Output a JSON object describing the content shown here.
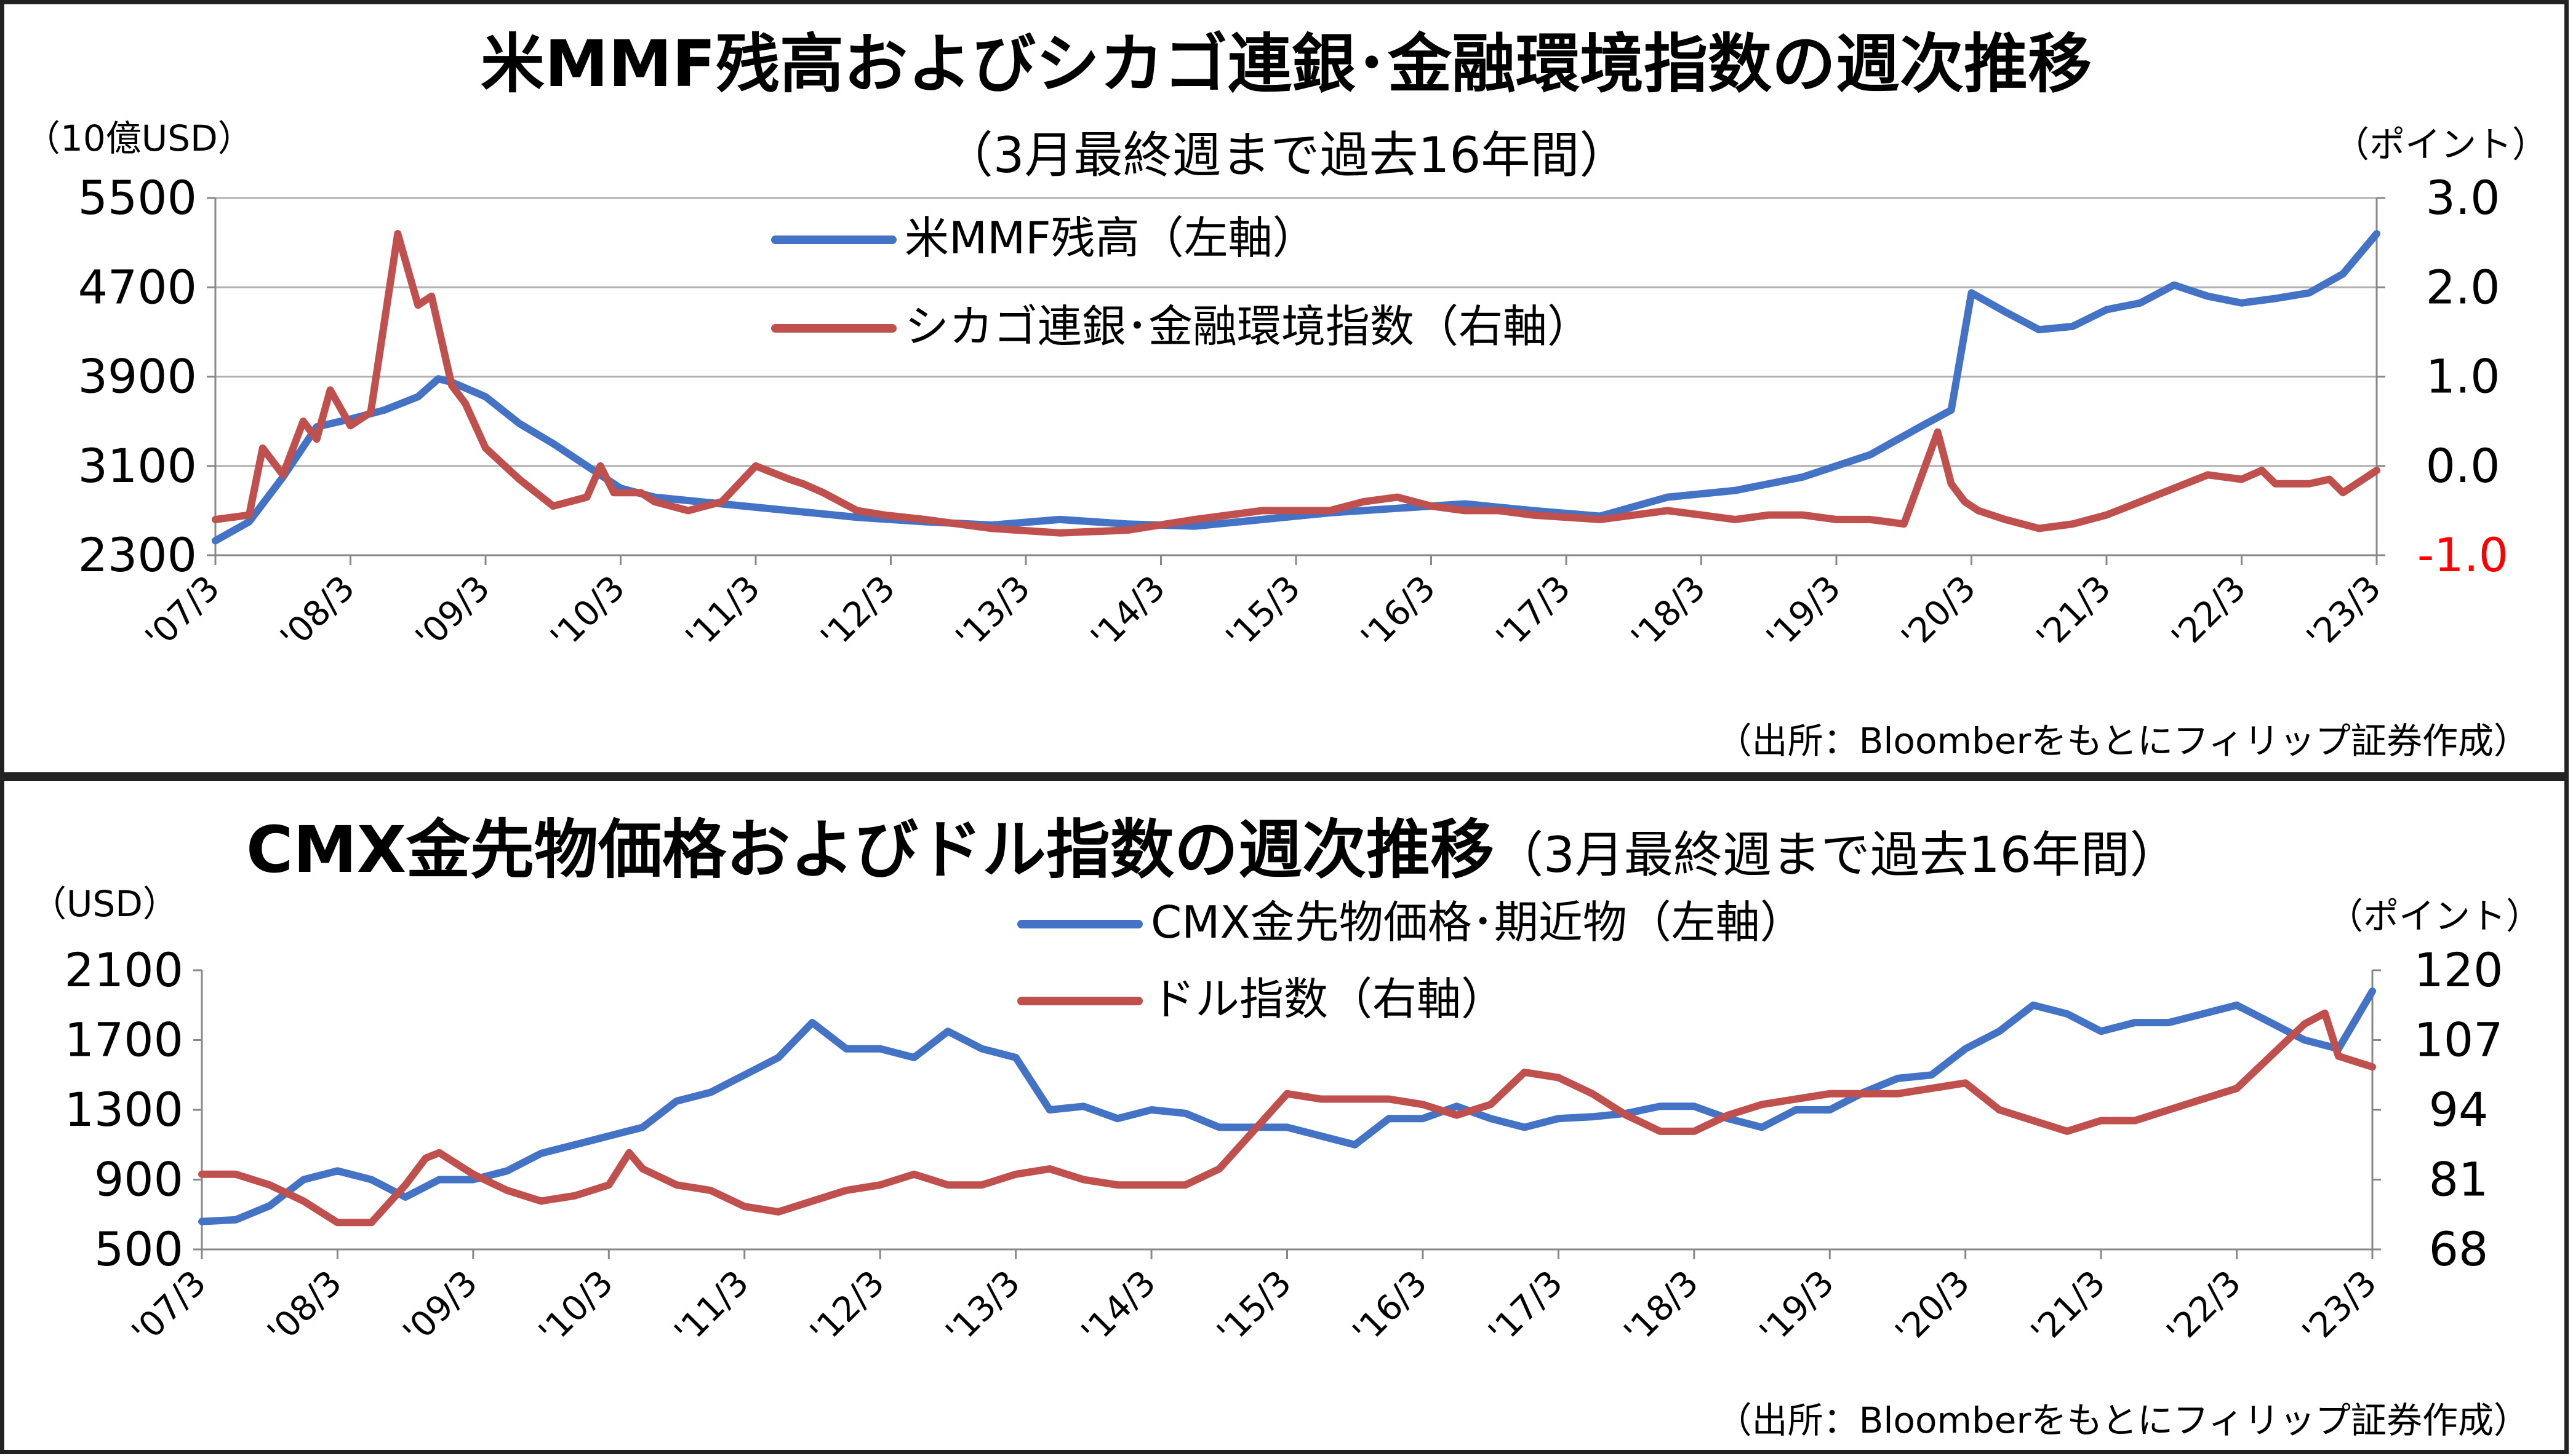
{
  "colors": {
    "blue": "#4472c4",
    "red": "#c0504d",
    "negative_tick": "#ff0000"
  },
  "chart_data": [
    {
      "type": "line",
      "title": "米MMF残高およびシカゴ連銀･金融環境指数の週次推移",
      "subtitle": "（3月最終週まで過去16年間）",
      "left_unit": "（10億USD）",
      "right_unit": "（ポイント）",
      "source": "（出所：Bloomberをもとにフィリップ証券作成）",
      "x_ticks": [
        "'07/3",
        "'08/3",
        "'09/3",
        "'10/3",
        "'11/3",
        "'12/3",
        "'13/3",
        "'14/3",
        "'15/3",
        "'16/3",
        "'17/3",
        "'18/3",
        "'19/3",
        "'20/3",
        "'21/3",
        "'22/3",
        "'23/3"
      ],
      "y_left_ticks": [
        "5500",
        "4700",
        "3900",
        "3100",
        "2300"
      ],
      "y_right_ticks": [
        "3.0",
        "2.0",
        "1.0",
        "0.0",
        "-1.0"
      ],
      "ylim_left": [
        2300,
        5500
      ],
      "ylim_right": [
        -1.0,
        3.0
      ],
      "grid": "horizontal",
      "legend_position": "top-center",
      "series": [
        {
          "name": "米MMF残高（左軸）",
          "axis": "left",
          "color": "#4472c4",
          "x": [
            2007.25,
            2007.5,
            2007.75,
            2008.0,
            2008.25,
            2008.5,
            2008.75,
            2008.9,
            2009.0,
            2009.25,
            2009.5,
            2009.75,
            2010.0,
            2010.25,
            2010.5,
            2011.0,
            2011.5,
            2012.0,
            2012.5,
            2013.0,
            2013.5,
            2014.0,
            2014.5,
            2015.0,
            2015.5,
            2016.0,
            2016.5,
            2017.0,
            2017.5,
            2018.0,
            2018.5,
            2019.0,
            2019.5,
            2019.9,
            2020.1,
            2020.25,
            2020.5,
            2020.75,
            2021.0,
            2021.25,
            2021.5,
            2021.75,
            2022.0,
            2022.25,
            2022.5,
            2022.75,
            2023.0,
            2023.25
          ],
          "y": [
            2430,
            2600,
            3000,
            3450,
            3520,
            3600,
            3720,
            3880,
            3850,
            3720,
            3480,
            3300,
            3100,
            2900,
            2820,
            2760,
            2700,
            2640,
            2600,
            2570,
            2620,
            2580,
            2560,
            2620,
            2680,
            2720,
            2760,
            2700,
            2650,
            2820,
            2880,
            3000,
            3200,
            3470,
            3600,
            4650,
            4480,
            4320,
            4350,
            4500,
            4560,
            4720,
            4620,
            4560,
            4600,
            4650,
            4820,
            5180
          ]
        },
        {
          "name": "シカゴ連銀･金融環境指数（右軸）",
          "axis": "right",
          "color": "#c0504d",
          "x": [
            2007.25,
            2007.5,
            2007.6,
            2007.75,
            2007.9,
            2008.0,
            2008.1,
            2008.25,
            2008.4,
            2008.6,
            2008.75,
            2008.85,
            2009.0,
            2009.1,
            2009.25,
            2009.5,
            2009.75,
            2010.0,
            2010.1,
            2010.2,
            2010.4,
            2010.5,
            2010.75,
            2011.0,
            2011.25,
            2011.5,
            2011.6,
            2011.75,
            2012.0,
            2012.2,
            2012.5,
            2012.75,
            2013.0,
            2013.5,
            2014.0,
            2014.5,
            2015.0,
            2015.5,
            2015.75,
            2016.0,
            2016.25,
            2016.5,
            2016.75,
            2017.0,
            2017.5,
            2018.0,
            2018.25,
            2018.5,
            2018.75,
            2019.0,
            2019.25,
            2019.5,
            2019.75,
            2020.0,
            2020.1,
            2020.2,
            2020.3,
            2020.5,
            2020.75,
            2021.0,
            2021.25,
            2021.5,
            2021.75,
            2022.0,
            2022.25,
            2022.4,
            2022.5,
            2022.75,
            2022.9,
            2023.0,
            2023.25
          ],
          "y": [
            -0.6,
            -0.55,
            0.2,
            -0.1,
            0.5,
            0.3,
            0.85,
            0.45,
            0.6,
            2.6,
            1.8,
            1.9,
            0.9,
            0.7,
            0.2,
            -0.15,
            -0.45,
            -0.35,
            0.0,
            -0.3,
            -0.3,
            -0.4,
            -0.5,
            -0.4,
            0.0,
            -0.15,
            -0.2,
            -0.3,
            -0.5,
            -0.55,
            -0.6,
            -0.65,
            -0.7,
            -0.75,
            -0.72,
            -0.6,
            -0.5,
            -0.5,
            -0.4,
            -0.35,
            -0.45,
            -0.5,
            -0.5,
            -0.55,
            -0.6,
            -0.5,
            -0.55,
            -0.6,
            -0.55,
            -0.55,
            -0.6,
            -0.6,
            -0.65,
            0.38,
            -0.2,
            -0.4,
            -0.5,
            -0.6,
            -0.7,
            -0.65,
            -0.55,
            -0.4,
            -0.25,
            -0.1,
            -0.15,
            -0.05,
            -0.2,
            -0.2,
            -0.15,
            -0.3,
            -0.05
          ]
        }
      ]
    },
    {
      "type": "line",
      "title": "CMX金先物価格およびドル指数の週次推移",
      "subtitle": "（3月最終週まで過去16年間）",
      "left_unit": "（USD）",
      "right_unit": "（ポイント）",
      "source": "（出所：Bloomberをもとにフィリップ証券作成）",
      "x_ticks": [
        "'07/3",
        "'08/3",
        "'09/3",
        "'10/3",
        "'11/3",
        "'12/3",
        "'13/3",
        "'14/3",
        "'15/3",
        "'16/3",
        "'17/3",
        "'18/3",
        "'19/3",
        "'20/3",
        "'21/3",
        "'22/3",
        "'23/3"
      ],
      "y_left_ticks": [
        "2100",
        "1700",
        "1300",
        "900",
        "500"
      ],
      "y_right_ticks": [
        "120",
        "107",
        "94",
        "81",
        "68"
      ],
      "ylim_left": [
        500,
        2100
      ],
      "ylim_right": [
        68,
        120
      ],
      "grid": "none",
      "legend_position": "top-center",
      "series": [
        {
          "name": "CMX金先物価格･期近物（左軸）",
          "axis": "left",
          "color": "#4472c4",
          "x": [
            2007.25,
            2007.5,
            2007.75,
            2008.0,
            2008.25,
            2008.5,
            2008.75,
            2009.0,
            2009.25,
            2009.5,
            2009.75,
            2010.0,
            2010.25,
            2010.5,
            2010.75,
            2011.0,
            2011.25,
            2011.5,
            2011.75,
            2012.0,
            2012.25,
            2012.5,
            2012.75,
            2013.0,
            2013.25,
            2013.5,
            2013.75,
            2014.0,
            2014.25,
            2014.5,
            2014.75,
            2015.0,
            2015.25,
            2015.5,
            2015.75,
            2016.0,
            2016.25,
            2016.5,
            2016.75,
            2017.0,
            2017.25,
            2017.5,
            2017.75,
            2018.0,
            2018.25,
            2018.5,
            2018.75,
            2019.0,
            2019.25,
            2019.5,
            2019.75,
            2020.0,
            2020.25,
            2020.5,
            2020.75,
            2021.0,
            2021.25,
            2021.5,
            2021.75,
            2022.0,
            2022.25,
            2022.5,
            2022.75,
            2023.0,
            2023.25
          ],
          "y": [
            660,
            670,
            750,
            900,
            950,
            900,
            800,
            900,
            900,
            950,
            1050,
            1100,
            1150,
            1200,
            1350,
            1400,
            1500,
            1600,
            1800,
            1650,
            1650,
            1600,
            1750,
            1650,
            1600,
            1300,
            1320,
            1250,
            1300,
            1280,
            1200,
            1200,
            1200,
            1150,
            1100,
            1250,
            1250,
            1320,
            1250,
            1200,
            1250,
            1260,
            1280,
            1320,
            1320,
            1250,
            1200,
            1300,
            1300,
            1400,
            1480,
            1500,
            1650,
            1750,
            1900,
            1850,
            1750,
            1800,
            1800,
            1850,
            1900,
            1800,
            1700,
            1650,
            1980
          ]
        },
        {
          "name": "ドル指数（右軸）",
          "axis": "right",
          "color": "#c0504d",
          "x": [
            2007.25,
            2007.5,
            2007.75,
            2008.0,
            2008.25,
            2008.5,
            2008.75,
            2008.9,
            2009.0,
            2009.25,
            2009.5,
            2009.75,
            2010.0,
            2010.25,
            2010.4,
            2010.5,
            2010.75,
            2011.0,
            2011.25,
            2011.5,
            2011.75,
            2012.0,
            2012.25,
            2012.5,
            2012.75,
            2013.0,
            2013.25,
            2013.5,
            2013.75,
            2014.0,
            2014.25,
            2014.5,
            2014.75,
            2015.0,
            2015.25,
            2015.5,
            2015.75,
            2016.0,
            2016.25,
            2016.5,
            2016.75,
            2017.0,
            2017.25,
            2017.5,
            2017.75,
            2018.0,
            2018.25,
            2018.5,
            2018.75,
            2019.0,
            2019.25,
            2019.5,
            2019.75,
            2020.0,
            2020.25,
            2020.5,
            2020.75,
            2021.0,
            2021.25,
            2021.5,
            2021.75,
            2022.0,
            2022.25,
            2022.5,
            2022.75,
            2022.9,
            2023.0,
            2023.25
          ],
          "y": [
            82,
            82,
            80,
            77,
            73,
            73,
            80,
            85,
            86,
            82,
            79,
            77,
            78,
            80,
            86,
            83,
            80,
            79,
            76,
            75,
            77,
            79,
            80,
            82,
            80,
            80,
            82,
            83,
            81,
            80,
            80,
            80,
            83,
            90,
            97,
            96,
            96,
            96,
            95,
            93,
            95,
            101,
            100,
            97,
            93,
            90,
            90,
            93,
            95,
            96,
            97,
            97,
            97,
            98,
            99,
            94,
            92,
            90,
            92,
            92,
            94,
            96,
            98,
            104,
            110,
            112,
            104,
            102
          ]
        }
      ]
    }
  ]
}
